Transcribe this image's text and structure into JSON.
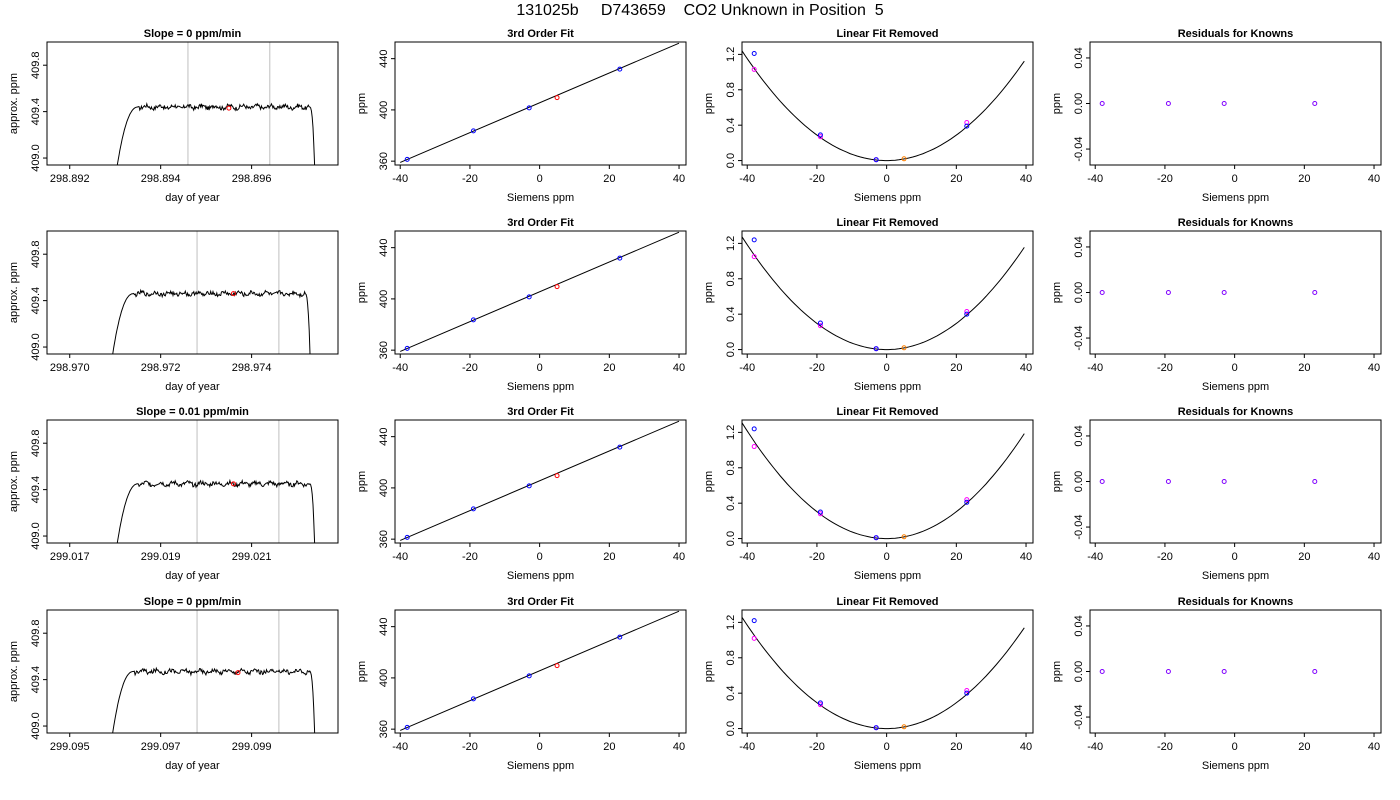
{
  "page": {
    "title": "131025b     D743659    CO2 Unknown in Position  5"
  },
  "chart_data": [
    {
      "type": "line",
      "row": 1,
      "panel": "trace",
      "title": "Slope =  0  ppm/min",
      "xlabel": "day of year",
      "ylabel": "approx. ppm",
      "xlim": [
        298.8915,
        298.8979
      ],
      "ylim": [
        408.94,
        410.0
      ],
      "xticks": [
        "298.892",
        "298.894",
        "298.896"
      ],
      "xtick_values": [
        298.892,
        298.894,
        298.896
      ],
      "yticks": [
        "409.0",
        "409.4",
        "409.8"
      ],
      "ytick_values": [
        409.0,
        409.4,
        409.8
      ],
      "window": [
        298.8946,
        298.8964
      ],
      "start": 298.893,
      "end": 298.8974,
      "plateau": 409.44,
      "marker": {
        "x": 298.8955,
        "y": 409.43
      }
    },
    {
      "type": "line",
      "row": 1,
      "panel": "fit",
      "title": "3rd Order Fit",
      "xlabel": "Siemens ppm",
      "ylabel": "ppm",
      "xlim": [
        -41.5,
        42
      ],
      "ylim": [
        357,
        453
      ],
      "xticks": [
        "-40",
        "-20",
        "0",
        "20",
        "40"
      ],
      "xtick_values": [
        -40,
        -20,
        0,
        20,
        40
      ],
      "yticks": [
        "360",
        "400",
        "440"
      ],
      "ytick_values": [
        360,
        400,
        440
      ],
      "line": {
        "x": [
          -40,
          40
        ],
        "y": [
          359.0,
          452.1
        ]
      },
      "knowns": {
        "x": [
          -38,
          -19,
          -3,
          23
        ],
        "y": [
          361.4,
          383.6,
          401.6,
          431.8
        ]
      },
      "unknown": {
        "x": 5,
        "y": 409.6
      }
    },
    {
      "type": "line",
      "row": 1,
      "panel": "linear_removed",
      "title": "Linear Fit Removed",
      "xlabel": "Siemens ppm",
      "ylabel": "ppm",
      "xlim": [
        -41.5,
        42
      ],
      "ylim": [
        -0.05,
        1.34
      ],
      "xticks": [
        "-40",
        "-20",
        "0",
        "20",
        "40"
      ],
      "xtick_values": [
        -40,
        -20,
        0,
        20,
        40
      ],
      "yticks": [
        "0.0",
        "0.4",
        "0.8",
        "1.2"
      ],
      "ytick_values": [
        0,
        0.4,
        0.8,
        1.2
      ],
      "curve": {
        "a": 0.00072,
        "x0": 0,
        "k": 0
      },
      "knowns": {
        "x": [
          -38,
          -19,
          -3,
          23
        ],
        "y": [
          1.21,
          0.29,
          0.01,
          0.39
        ]
      },
      "knowns_alt": {
        "x": [
          -38,
          -19,
          -3,
          23
        ],
        "y": [
          1.03,
          0.27,
          0.01,
          0.43
        ]
      },
      "unknown": {
        "x": 5,
        "y": 0.02
      }
    },
    {
      "type": "scatter",
      "row": 1,
      "panel": "residuals",
      "title": "Residuals for Knowns",
      "xlabel": "Siemens ppm",
      "ylabel": "ppm",
      "xlim": [
        -41.5,
        42
      ],
      "ylim": [
        -0.054,
        0.054
      ],
      "xticks": [
        "-40",
        "-20",
        "0",
        "20",
        "40"
      ],
      "xtick_values": [
        -40,
        -20,
        0,
        20,
        40
      ],
      "yticks": [
        "-0.04",
        "0.00",
        "0.04"
      ],
      "ytick_values": [
        -0.04,
        0,
        0.04
      ],
      "points": {
        "x": [
          -38,
          -19,
          -3,
          23
        ],
        "y": [
          0,
          0,
          0,
          0
        ]
      }
    },
    {
      "type": "line",
      "row": 2,
      "panel": "trace",
      "title": "",
      "xlabel": "day of year",
      "ylabel": "approx. ppm",
      "xlim": [
        298.9695,
        298.9759
      ],
      "ylim": [
        408.94,
        410.0
      ],
      "xticks": [
        "298.970",
        "298.972",
        "298.974"
      ],
      "xtick_values": [
        298.97,
        298.972,
        298.974
      ],
      "yticks": [
        "409.0",
        "409.4",
        "409.8"
      ],
      "ytick_values": [
        409.0,
        409.4,
        409.8
      ],
      "window": [
        298.9728,
        298.9746
      ],
      "start": 298.9709,
      "end": 298.9753,
      "plateau": 409.46,
      "marker": {
        "x": 298.9736,
        "y": 409.46
      }
    },
    {
      "type": "line",
      "row": 2,
      "panel": "fit",
      "title": "3rd Order Fit",
      "xlabel": "Siemens ppm",
      "ylabel": "ppm",
      "xlim": [
        -41.5,
        42
      ],
      "ylim": [
        357,
        453
      ],
      "xticks": [
        "-40",
        "-20",
        "0",
        "20",
        "40"
      ],
      "xtick_values": [
        -40,
        -20,
        0,
        20,
        40
      ],
      "yticks": [
        "360",
        "400",
        "440"
      ],
      "ytick_values": [
        360,
        400,
        440
      ],
      "line": {
        "x": [
          -40,
          40
        ],
        "y": [
          359.0,
          452.1
        ]
      },
      "knowns": {
        "x": [
          -38,
          -19,
          -3,
          23
        ],
        "y": [
          361.4,
          383.6,
          401.6,
          431.8
        ]
      },
      "unknown": {
        "x": 5,
        "y": 409.6
      }
    },
    {
      "type": "line",
      "row": 2,
      "panel": "linear_removed",
      "title": "Linear Fit Removed",
      "xlabel": "Siemens ppm",
      "ylabel": "ppm",
      "xlim": [
        -41.5,
        42
      ],
      "ylim": [
        -0.05,
        1.34
      ],
      "xticks": [
        "-40",
        "-20",
        "0",
        "20",
        "40"
      ],
      "xtick_values": [
        -40,
        -20,
        0,
        20,
        40
      ],
      "yticks": [
        "0.0",
        "0.4",
        "0.8",
        "1.2"
      ],
      "ytick_values": [
        0,
        0.4,
        0.8,
        1.2
      ],
      "curve": {
        "a": 0.00074,
        "x0": 0,
        "k": 0
      },
      "knowns": {
        "x": [
          -38,
          -19,
          -3,
          23
        ],
        "y": [
          1.24,
          0.3,
          0.01,
          0.4
        ]
      },
      "knowns_alt": {
        "x": [
          -38,
          -19,
          -3,
          23
        ],
        "y": [
          1.05,
          0.27,
          0.01,
          0.43
        ]
      },
      "unknown": {
        "x": 5,
        "y": 0.02
      }
    },
    {
      "type": "scatter",
      "row": 2,
      "panel": "residuals",
      "title": "Residuals for Knowns",
      "xlabel": "Siemens ppm",
      "ylabel": "ppm",
      "xlim": [
        -41.5,
        42
      ],
      "ylim": [
        -0.054,
        0.054
      ],
      "xticks": [
        "-40",
        "-20",
        "0",
        "20",
        "40"
      ],
      "xtick_values": [
        -40,
        -20,
        0,
        20,
        40
      ],
      "yticks": [
        "-0.04",
        "0.00",
        "0.04"
      ],
      "ytick_values": [
        -0.04,
        0,
        0.04
      ],
      "points": {
        "x": [
          -38,
          -19,
          -3,
          23
        ],
        "y": [
          0,
          0,
          0,
          0
        ]
      }
    },
    {
      "type": "line",
      "row": 3,
      "panel": "trace",
      "title": "Slope =  0.01  ppm/min",
      "xlabel": "day of year",
      "ylabel": "approx. ppm",
      "xlim": [
        299.0165,
        299.0229
      ],
      "ylim": [
        408.94,
        410.0
      ],
      "xticks": [
        "299.017",
        "299.019",
        "299.021"
      ],
      "xtick_values": [
        299.017,
        299.019,
        299.021
      ],
      "yticks": [
        "409.0",
        "409.4",
        "409.8"
      ],
      "ytick_values": [
        409.0,
        409.4,
        409.8
      ],
      "window": [
        299.0198,
        299.0216
      ],
      "start": 299.018,
      "end": 299.0224,
      "plateau": 409.45,
      "marker": {
        "x": 299.0206,
        "y": 409.45
      }
    },
    {
      "type": "line",
      "row": 3,
      "panel": "fit",
      "title": "3rd Order Fit",
      "xlabel": "Siemens ppm",
      "ylabel": "ppm",
      "xlim": [
        -41.5,
        42
      ],
      "ylim": [
        357,
        453
      ],
      "xticks": [
        "-40",
        "-20",
        "0",
        "20",
        "40"
      ],
      "xtick_values": [
        -40,
        -20,
        0,
        20,
        40
      ],
      "yticks": [
        "360",
        "400",
        "440"
      ],
      "ytick_values": [
        360,
        400,
        440
      ],
      "line": {
        "x": [
          -40,
          40
        ],
        "y": [
          359.0,
          452.1
        ]
      },
      "knowns": {
        "x": [
          -38,
          -19,
          -3,
          23
        ],
        "y": [
          361.4,
          383.6,
          401.6,
          431.8
        ]
      },
      "unknown": {
        "x": 5,
        "y": 409.6
      }
    },
    {
      "type": "line",
      "row": 3,
      "panel": "linear_removed",
      "title": "Linear Fit Removed",
      "xlabel": "Siemens ppm",
      "ylabel": "ppm",
      "xlim": [
        -41.5,
        42
      ],
      "ylim": [
        -0.05,
        1.34
      ],
      "xticks": [
        "-40",
        "-20",
        "0",
        "20",
        "40"
      ],
      "xtick_values": [
        -40,
        -20,
        0,
        20,
        40
      ],
      "yticks": [
        "0.0",
        "0.4",
        "0.8",
        "1.2"
      ],
      "ytick_values": [
        0,
        0.4,
        0.8,
        1.2
      ],
      "curve": {
        "a": 0.00076,
        "x0": 0,
        "k": 0
      },
      "knowns": {
        "x": [
          -38,
          -19,
          -3,
          23
        ],
        "y": [
          1.24,
          0.3,
          0.01,
          0.41
        ]
      },
      "knowns_alt": {
        "x": [
          -38,
          -19,
          -3,
          23
        ],
        "y": [
          1.04,
          0.28,
          0.01,
          0.44
        ]
      },
      "unknown": {
        "x": 5,
        "y": 0.02
      }
    },
    {
      "type": "scatter",
      "row": 3,
      "panel": "residuals",
      "title": "Residuals for Knowns",
      "xlabel": "Siemens ppm",
      "ylabel": "ppm",
      "xlim": [
        -41.5,
        42
      ],
      "ylim": [
        -0.054,
        0.054
      ],
      "xticks": [
        "-40",
        "-20",
        "0",
        "20",
        "40"
      ],
      "xtick_values": [
        -40,
        -20,
        0,
        20,
        40
      ],
      "yticks": [
        "-0.04",
        "0.00",
        "0.04"
      ],
      "ytick_values": [
        -0.04,
        0,
        0.04
      ],
      "points": {
        "x": [
          -38,
          -19,
          -3,
          23
        ],
        "y": [
          0,
          0,
          0,
          0
        ]
      }
    },
    {
      "type": "line",
      "row": 4,
      "panel": "trace",
      "title": "Slope =  0  ppm/min",
      "xlabel": "day of year",
      "ylabel": "approx. ppm",
      "xlim": [
        299.0945,
        299.1009
      ],
      "ylim": [
        408.94,
        410.0
      ],
      "xticks": [
        "299.095",
        "299.097",
        "299.099"
      ],
      "xtick_values": [
        299.095,
        299.097,
        299.099
      ],
      "yticks": [
        "409.0",
        "409.4",
        "409.8"
      ],
      "ytick_values": [
        409.0,
        409.4,
        409.8
      ],
      "window": [
        299.0978,
        299.0996
      ],
      "start": 299.0959,
      "end": 299.1004,
      "plateau": 409.47,
      "marker": {
        "x": 299.0987,
        "y": 409.46
      }
    },
    {
      "type": "line",
      "row": 4,
      "panel": "fit",
      "title": "3rd Order Fit",
      "xlabel": "Siemens ppm",
      "ylabel": "ppm",
      "xlim": [
        -41.5,
        42
      ],
      "ylim": [
        357,
        453
      ],
      "xticks": [
        "-40",
        "-20",
        "0",
        "20",
        "40"
      ],
      "xtick_values": [
        -40,
        -20,
        0,
        20,
        40
      ],
      "yticks": [
        "360",
        "400",
        "440"
      ],
      "ytick_values": [
        360,
        400,
        440
      ],
      "line": {
        "x": [
          -40,
          40
        ],
        "y": [
          359.0,
          452.1
        ]
      },
      "knowns": {
        "x": [
          -38,
          -19,
          -3,
          23
        ],
        "y": [
          361.4,
          383.6,
          401.6,
          431.8
        ]
      },
      "unknown": {
        "x": 5,
        "y": 409.6
      }
    },
    {
      "type": "line",
      "row": 4,
      "panel": "linear_removed",
      "title": "Linear Fit Removed",
      "xlabel": "Siemens ppm",
      "ylabel": "ppm",
      "xlim": [
        -41.5,
        42
      ],
      "ylim": [
        -0.05,
        1.34
      ],
      "xticks": [
        "-40",
        "-20",
        "0",
        "20",
        "40"
      ],
      "xtick_values": [
        -40,
        -20,
        0,
        20,
        40
      ],
      "yticks": [
        "0.0",
        "0.4",
        "0.8",
        "1.2"
      ],
      "ytick_values": [
        0,
        0.4,
        0.8,
        1.2
      ],
      "curve": {
        "a": 0.00073,
        "x0": 0,
        "k": 0
      },
      "knowns": {
        "x": [
          -38,
          -19,
          -3,
          23
        ],
        "y": [
          1.22,
          0.29,
          0.01,
          0.4
        ]
      },
      "knowns_alt": {
        "x": [
          -38,
          -19,
          -3,
          23
        ],
        "y": [
          1.02,
          0.27,
          0.01,
          0.43
        ]
      },
      "unknown": {
        "x": 5,
        "y": 0.02
      }
    },
    {
      "type": "scatter",
      "row": 4,
      "panel": "residuals",
      "title": "Residuals for Knowns",
      "xlabel": "Siemens ppm",
      "ylabel": "ppm",
      "xlim": [
        -41.5,
        42
      ],
      "ylim": [
        -0.054,
        0.054
      ],
      "xticks": [
        "-40",
        "-20",
        "0",
        "20",
        "40"
      ],
      "xtick_values": [
        -40,
        -20,
        0,
        20,
        40
      ],
      "yticks": [
        "-0.04",
        "0.00",
        "0.04"
      ],
      "ytick_values": [
        -0.04,
        0,
        0.04
      ],
      "points": {
        "x": [
          -38,
          -19,
          -3,
          23
        ],
        "y": [
          0,
          0,
          0,
          0
        ]
      }
    }
  ],
  "colors": {
    "trace": "#000000",
    "window_line": "#bebebe",
    "marker_red": "#ff0000",
    "known_blue": "#0000ff",
    "known_magenta": "#ff00ff",
    "unknown_orange": "#ff8000",
    "residual_purple": "#8000ff"
  }
}
